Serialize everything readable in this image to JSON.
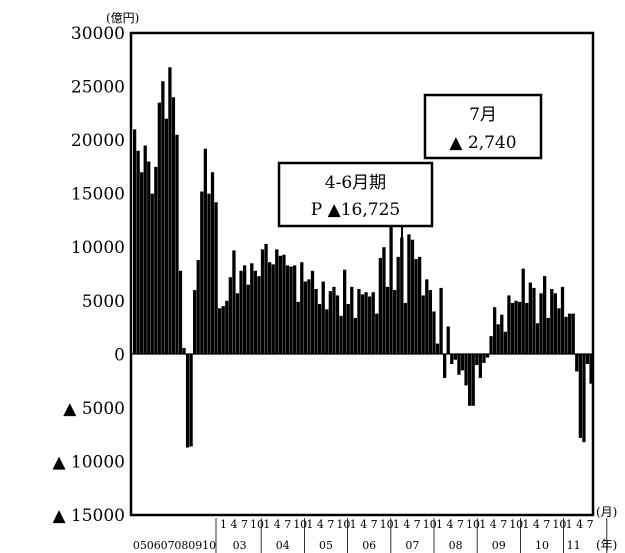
{
  "chart_data": {
    "type": "bar",
    "ylim": [
      -15000,
      30000
    ],
    "y_ticks": [
      {
        "value": 30000,
        "label": "30000"
      },
      {
        "value": 25000,
        "label": "25000"
      },
      {
        "value": 20000,
        "label": "20000"
      },
      {
        "value": 15000,
        "label": "15000"
      },
      {
        "value": 10000,
        "label": "10000"
      },
      {
        "value": 5000,
        "label": "5000"
      },
      {
        "value": 0,
        "label": "0"
      },
      {
        "value": -5000,
        "label": "▲ 5000"
      },
      {
        "value": -10000,
        "label": "▲ 10000"
      },
      {
        "value": -15000,
        "label": "▲ 15000"
      }
    ],
    "y_unit": "(億円)",
    "x_unit_month": "(月)",
    "x_unit_year": "(年)",
    "early_period": {
      "values": [
        21000,
        19000,
        17000,
        19500,
        18000,
        15000,
        17500,
        23500,
        25500,
        22000,
        26800,
        24000,
        20500,
        7800,
        600,
        -8700,
        -8600
      ]
    },
    "monthly": {
      "start": "2002-10",
      "values": [
        6000,
        8800,
        15200,
        19200,
        15000,
        17000,
        14200,
        4300,
        4500,
        5000,
        7200,
        9700,
        5700,
        7800,
        8300,
        6500,
        8500,
        7800,
        7300,
        9800,
        10300,
        8600,
        8400,
        9800,
        9200,
        9300,
        8300,
        8200,
        8300,
        4900,
        8600,
        6800,
        7000,
        7800,
        6100,
        4700,
        6800,
        4200,
        5900,
        6300,
        5500,
        3600,
        7900,
        4700,
        6300,
        3400,
        6100,
        5600,
        5800,
        5400,
        5800,
        3800,
        9000,
        10000,
        6300,
        11900,
        6000,
        9100,
        10900,
        4800,
        11200,
        10700,
        8900,
        9100,
        5500,
        7000,
        6000,
        4000,
        1000,
        6200,
        -2200,
        2600,
        -900,
        -500,
        -1900,
        -1500,
        -2900,
        -4800,
        -4800,
        -1000,
        -2200,
        -800,
        -300,
        1700,
        4400,
        2800,
        3700,
        2100,
        5500,
        4800,
        5000,
        4900,
        8000,
        4800,
        6700,
        6200,
        2900,
        5700,
        7300,
        3400,
        6100,
        5700,
        4300,
        6300,
        3500,
        3800,
        3800,
        -1600,
        -7800,
        -8200,
        -900,
        -2740
      ]
    },
    "month_tick_labels": [
      "1",
      "4",
      "7",
      "10"
    ],
    "early_year_labels": [
      "05",
      "06",
      "07",
      "08",
      "09",
      "10"
    ],
    "year_labels": [
      "03",
      "04",
      "05",
      "06",
      "07",
      "08",
      "09",
      "10",
      "11"
    ],
    "annotations": [
      {
        "title": "4-6月期",
        "value_text": "P ▲16,725"
      },
      {
        "title": "7月",
        "value_text": "▲ 2,740"
      }
    ],
    "bar_color": "#000000",
    "grid": false
  }
}
